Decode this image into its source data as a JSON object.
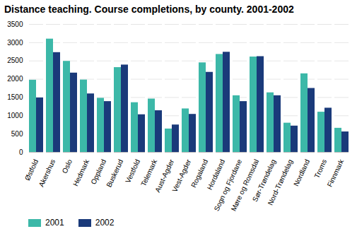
{
  "chart_data": {
    "type": "bar",
    "title": "Distance teaching.  Course completions, by county. 2001-2002",
    "categories": [
      "Østfold",
      "Akershus",
      "Oslo",
      "Hedmark",
      "Oppland",
      "Buskerud",
      "Vestfold",
      "Telemark",
      "Aust-Agder",
      "Vest-Agder",
      "Rogaland",
      "Hordaland",
      "Sogn og Fjordane",
      "Møre og Romsdal",
      "Sør-Trøndelag",
      "Nord-Trøndelag",
      "Nordland",
      "Troms",
      "Finnmark"
    ],
    "series": [
      {
        "name": "2001",
        "color": "#3cb8a8",
        "values": [
          1975,
          3100,
          2490,
          1980,
          1480,
          2320,
          1360,
          1460,
          640,
          1190,
          2450,
          2680,
          1550,
          2610,
          1630,
          800,
          2150,
          1100,
          660
        ]
      },
      {
        "name": "2002",
        "color": "#1a3a7a",
        "values": [
          1490,
          2730,
          2170,
          1600,
          1390,
          2390,
          1030,
          1140,
          750,
          1040,
          2190,
          2740,
          1390,
          2620,
          1550,
          720,
          1750,
          1210,
          560
        ]
      }
    ],
    "ylim": [
      0,
      3500
    ],
    "yticks": [
      0,
      500,
      1000,
      1500,
      2000,
      2500,
      3000,
      3500
    ],
    "grid": true,
    "legend": "bottom"
  }
}
